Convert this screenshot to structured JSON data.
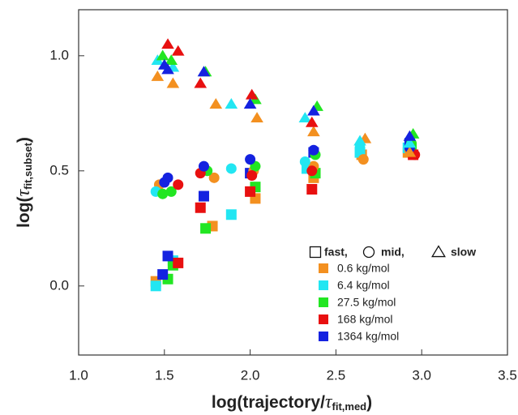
{
  "chart_data": {
    "type": "scatter",
    "x_label": {
      "prefix": "log(trajectory/",
      "symbol": "τ",
      "subscript": "fit,med",
      "suffix": ")"
    },
    "y_label": {
      "prefix": "log(",
      "symbol": "τ",
      "subscript": "fit,subset",
      "suffix": ")"
    },
    "xlim": [
      1.0,
      3.5
    ],
    "ylim": [
      -0.3,
      1.2
    ],
    "xticks": [
      {
        "value": 1,
        "label": "1.0"
      },
      1.5,
      {
        "value": 2,
        "label": "2.0"
      },
      2.5,
      {
        "value": 3,
        "label": "3.0"
      },
      3.5
    ],
    "yticks": [
      {
        "value": 0,
        "label": "0.0"
      },
      0.5,
      {
        "value": 1,
        "label": "1.0"
      }
    ],
    "markers": {
      "fast": {
        "shape": "square",
        "label": "fast,"
      },
      "mid": {
        "shape": "circle",
        "label": "mid,"
      },
      "slow": {
        "shape": "triangle",
        "label": "slow"
      }
    },
    "series": [
      {
        "name": "0.6 kg/mol",
        "color": "#f39020",
        "fast": {
          "x": [
            1.45,
            1.78,
            2.03,
            2.37,
            2.65,
            2.92
          ],
          "values": [
            0.02,
            0.26,
            0.38,
            0.47,
            0.57,
            0.58
          ]
        },
        "mid": {
          "x": [
            1.47,
            1.79,
            2.02,
            2.37,
            2.66,
            2.93
          ],
          "values": [
            0.44,
            0.47,
            0.5,
            0.52,
            0.55,
            0.59
          ]
        },
        "slow": {
          "x": [
            1.46,
            1.55,
            1.8,
            2.04,
            2.37,
            2.67,
            2.93
          ],
          "values": [
            0.91,
            0.88,
            0.79,
            0.73,
            0.67,
            0.64,
            0.58
          ]
        }
      },
      {
        "name": "6.4 kg/mol",
        "color": "#22e6f2",
        "fast": {
          "x": [
            1.45,
            1.55,
            1.89,
            2.33,
            2.64,
            2.92
          ],
          "values": [
            0.0,
            0.11,
            0.31,
            0.51,
            0.58,
            0.6
          ]
        },
        "mid": {
          "x": [
            1.45,
            1.89,
            2.32,
            2.64
          ],
          "values": [
            0.41,
            0.51,
            0.54,
            0.6
          ]
        },
        "slow": {
          "x": [
            1.46,
            1.55,
            1.89,
            2.32,
            2.64,
            2.93
          ],
          "values": [
            0.98,
            0.95,
            0.79,
            0.73,
            0.63,
            0.62
          ]
        }
      },
      {
        "name": "27.5 kg/mol",
        "color": "#22e622",
        "fast": {
          "x": [
            1.52,
            1.55,
            1.74,
            2.03,
            2.38,
            2.94
          ],
          "values": [
            0.03,
            0.09,
            0.25,
            0.43,
            0.49,
            0.6
          ]
        },
        "mid": {
          "x": [
            1.49,
            1.54,
            1.75,
            2.03,
            2.38,
            2.94
          ],
          "values": [
            0.4,
            0.41,
            0.5,
            0.52,
            0.57,
            0.62
          ]
        },
        "slow": {
          "x": [
            1.49,
            1.54,
            1.74,
            2.03,
            2.39,
            2.95
          ],
          "values": [
            1.0,
            0.98,
            0.93,
            0.81,
            0.78,
            0.66
          ]
        }
      },
      {
        "name": "168 kg/mol",
        "color": "#e81010",
        "fast": {
          "x": [
            1.58,
            1.71,
            2.0,
            2.36,
            2.95
          ],
          "values": [
            0.1,
            0.34,
            0.41,
            0.42,
            0.57
          ]
        },
        "mid": {
          "x": [
            1.58,
            1.71,
            2.01,
            2.36,
            2.96
          ],
          "values": [
            0.44,
            0.49,
            0.48,
            0.5,
            0.57
          ]
        },
        "slow": {
          "x": [
            1.52,
            1.58,
            1.71,
            2.01,
            2.36
          ],
          "values": [
            1.05,
            1.02,
            0.88,
            0.83,
            0.71
          ]
        }
      },
      {
        "name": "1364 kg/mol",
        "color": "#1422e0",
        "fast": {
          "x": [
            1.49,
            1.52,
            1.73,
            2.0,
            2.37,
            2.93
          ],
          "values": [
            0.05,
            0.13,
            0.39,
            0.49,
            0.58,
            0.62
          ]
        },
        "mid": {
          "x": [
            1.5,
            1.52,
            1.73,
            2.0,
            2.37,
            2.93
          ],
          "values": [
            0.45,
            0.47,
            0.52,
            0.55,
            0.59,
            0.6
          ]
        },
        "slow": {
          "x": [
            1.5,
            1.52,
            1.73,
            2.0,
            2.37,
            2.93
          ],
          "values": [
            0.96,
            0.94,
            0.93,
            0.79,
            0.76,
            0.65
          ]
        }
      }
    ]
  }
}
